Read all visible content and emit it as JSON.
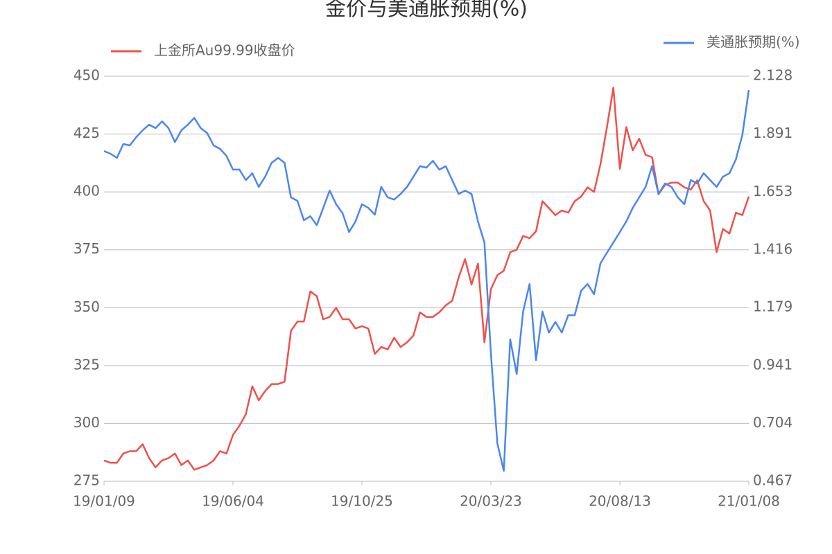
{
  "chart_data": {
    "type": "line",
    "title": "金价与美通胀预期(%)",
    "categories": [
      "19/01/09",
      null,
      null,
      null,
      null,
      null,
      null,
      null,
      null,
      null,
      null,
      null,
      null,
      null,
      null,
      null,
      null,
      null,
      null,
      null,
      "19/06/04",
      null,
      null,
      null,
      null,
      null,
      null,
      null,
      null,
      null,
      null,
      null,
      null,
      null,
      null,
      null,
      null,
      null,
      null,
      null,
      "19/10/25",
      null,
      null,
      null,
      null,
      null,
      null,
      null,
      null,
      null,
      null,
      null,
      null,
      null,
      null,
      null,
      null,
      null,
      null,
      null,
      "20/03/23",
      null,
      null,
      null,
      null,
      null,
      null,
      null,
      null,
      null,
      null,
      null,
      null,
      null,
      null,
      null,
      null,
      null,
      null,
      null,
      "20/08/13",
      null,
      null,
      null,
      null,
      null,
      null,
      null,
      null,
      null,
      null,
      null,
      null,
      null,
      null,
      null,
      null,
      null,
      null,
      null,
      "21/01/08"
    ],
    "ylim": [
      275,
      450
    ],
    "yticks": [
      275,
      300,
      325,
      350,
      375,
      400,
      425,
      450
    ],
    "y2lim": [
      0.467,
      2.128
    ],
    "y2ticks": [
      0.467,
      0.704,
      0.941,
      1.179,
      1.416,
      1.653,
      1.891,
      2.128
    ],
    "grid": true,
    "series": [
      {
        "name": "上金所Au99.99收盘价",
        "color": "#f0504b",
        "values": [
          284,
          283,
          283,
          287,
          288,
          288,
          291,
          285,
          281,
          284,
          285,
          287,
          282,
          284,
          280,
          281,
          282,
          284,
          288,
          287,
          295,
          299,
          304,
          316,
          310,
          314,
          317,
          317,
          318,
          340,
          344,
          344,
          357,
          355,
          345,
          346,
          350,
          345,
          345,
          341,
          342,
          341,
          330,
          333,
          332,
          337,
          333,
          335,
          338,
          348,
          346,
          346,
          348,
          351,
          353,
          363,
          371,
          360,
          369,
          335,
          358,
          364,
          366,
          374,
          375,
          381,
          380,
          383,
          396,
          393,
          390,
          392,
          391,
          396,
          398,
          402,
          400,
          412,
          428,
          445,
          410,
          428,
          418,
          423,
          416,
          415,
          399,
          403,
          404,
          404,
          402,
          401,
          405,
          396,
          392,
          374,
          384,
          382,
          391,
          390,
          398
        ]
      },
      {
        "name": "美通胀预期(%)",
        "color": "#4a86f0",
        "axis": "y2",
        "values": [
          1.821,
          1.81,
          1.793,
          1.85,
          1.844,
          1.878,
          1.906,
          1.929,
          1.915,
          1.943,
          1.915,
          1.858,
          1.906,
          1.929,
          1.957,
          1.915,
          1.895,
          1.844,
          1.83,
          1.801,
          1.745,
          1.745,
          1.702,
          1.73,
          1.674,
          1.716,
          1.773,
          1.793,
          1.773,
          1.631,
          1.617,
          1.537,
          1.554,
          1.517,
          1.588,
          1.659,
          1.603,
          1.566,
          1.489,
          1.532,
          1.603,
          1.588,
          1.56,
          1.674,
          1.631,
          1.622,
          1.645,
          1.674,
          1.716,
          1.759,
          1.753,
          1.781,
          1.745,
          1.759,
          1.702,
          1.645,
          1.659,
          1.645,
          1.532,
          1.446,
          0.992,
          0.623,
          0.51,
          1.049,
          0.907,
          1.163,
          1.276,
          0.964,
          1.163,
          1.077,
          1.12,
          1.077,
          1.148,
          1.148,
          1.248,
          1.276,
          1.234,
          1.361,
          1.404,
          1.446,
          1.489,
          1.532,
          1.588,
          1.631,
          1.674,
          1.759,
          1.645,
          1.688,
          1.674,
          1.631,
          1.603,
          1.702,
          1.688,
          1.73,
          1.702,
          1.674,
          1.716,
          1.73,
          1.787,
          1.887,
          2.071
        ]
      }
    ]
  }
}
